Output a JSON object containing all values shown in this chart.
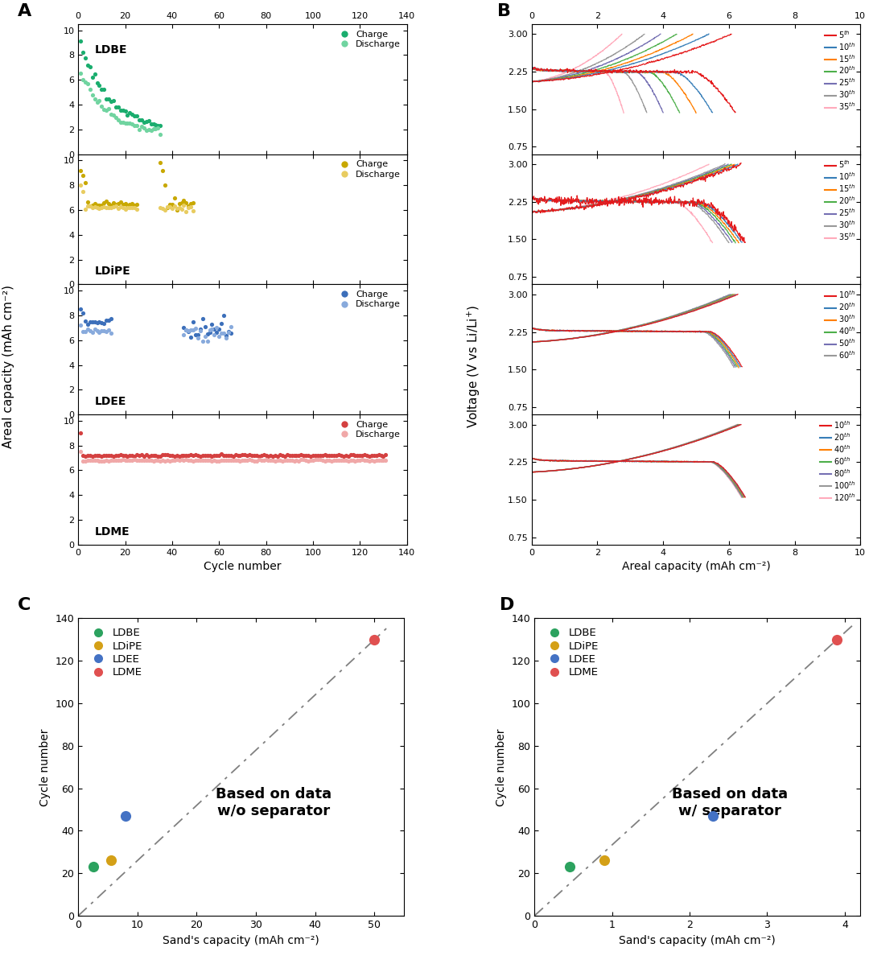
{
  "panel_A_labels": [
    "LDBE",
    "LDiPE",
    "LDEE",
    "LDME"
  ],
  "panel_A_colors_charge": [
    "#1aad6e",
    "#c8a800",
    "#3c6fba",
    "#d44040"
  ],
  "panel_A_colors_discharge": [
    "#70d4a0",
    "#e8cc60",
    "#88aadc",
    "#f0a8a8"
  ],
  "panel_B_colors_row01": [
    "#e41a1c",
    "#377eb8",
    "#ff7f00",
    "#4daf4a",
    "#7570b3",
    "#999999",
    "#ffaabb"
  ],
  "panel_B_colors_row23": [
    "#e41a1c",
    "#377eb8",
    "#ff7f00",
    "#4daf4a",
    "#7570b3",
    "#999999",
    "#ffaabb"
  ],
  "cycle_labels_0": [
    "5th",
    "10th",
    "15th",
    "20th",
    "25th",
    "30th",
    "35th"
  ],
  "cycle_labels_1": [
    "5th",
    "10th",
    "15th",
    "20th",
    "25th",
    "30th",
    "35th"
  ],
  "cycle_labels_2": [
    "10th",
    "20th",
    "30th",
    "40th",
    "50th",
    "60th"
  ],
  "cycle_labels_3": [
    "10th",
    "20th",
    "40th",
    "60th",
    "80th",
    "100th",
    "120th"
  ],
  "panel_C": {
    "x": [
      2.5,
      5.5,
      8.0,
      50.0
    ],
    "y": [
      23,
      26,
      47,
      130
    ],
    "colors": [
      "#2ca25f",
      "#d4a017",
      "#4472c4",
      "#e05050"
    ],
    "labels": [
      "LDBE",
      "LDiPE",
      "LDEE",
      "LDME"
    ],
    "xlabel": "Sand's capacity (mAh cm⁻²)",
    "ylabel": "Cycle number",
    "annotation": "Based on data\nw/o separator",
    "xlim": [
      0,
      55
    ],
    "ylim": [
      0,
      140
    ],
    "xticks": [
      0,
      10,
      20,
      30,
      40,
      50
    ]
  },
  "panel_D": {
    "x": [
      0.45,
      0.9,
      2.3,
      3.9
    ],
    "y": [
      23,
      26,
      47,
      130
    ],
    "colors": [
      "#2ca25f",
      "#d4a017",
      "#4472c4",
      "#e05050"
    ],
    "labels": [
      "LDBE",
      "LDiPE",
      "LDEE",
      "LDME"
    ],
    "xlabel": "Sand's capacity (mAh cm⁻²)",
    "ylabel": "Cycle number",
    "annotation": "Based on data\nw/ separator",
    "xlim": [
      0,
      4.2
    ],
    "ylim": [
      0,
      140
    ],
    "xticks": [
      0,
      1,
      2,
      3,
      4
    ]
  }
}
